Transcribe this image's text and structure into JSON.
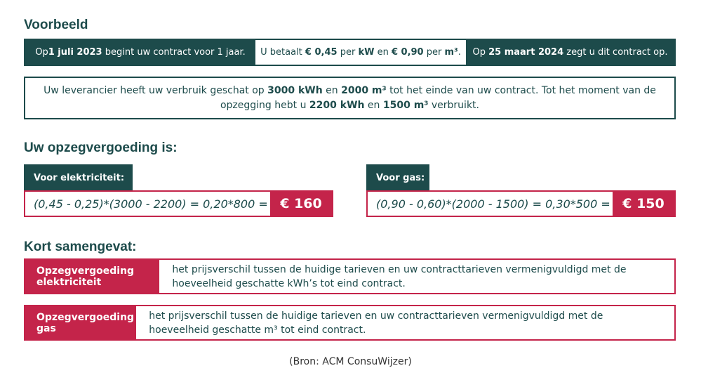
{
  "title": "Voorbeeld",
  "bar": {
    "s1": {
      "a": "Op ",
      "b": "1 juli 2023",
      "c": " begint uw contract voor 1 jaar."
    },
    "s2": {
      "a": "U betaalt ",
      "b": "€ 0,45",
      "c": " per ",
      "d": "kW",
      "e": " en ",
      "f": "€ 0,90",
      "g": " per ",
      "h": "m³",
      "i": "."
    },
    "s3": {
      "a": "Op ",
      "b": "25 maart 2024",
      "c": " zegt u dit contract op."
    }
  },
  "estimate": {
    "a": "Uw leverancier heeft uw verbruik geschat op ",
    "b": "3000 kWh",
    "c": " en ",
    "d": "2000 m³",
    "e": " tot het einde van uw contract. Tot het moment van de opzegging hebt u ",
    "f": "2200 kWh",
    "g": " en ",
    "h": "1500 m³",
    "i": " verbruikt."
  },
  "fee_heading": "Uw opzegvergoeding is:",
  "electricity": {
    "label": "Voor elektriciteit:",
    "formula": "(0,45 - 0,25)*(3000 - 2200) = 0,20*800 =",
    "result": "€ 160"
  },
  "gas": {
    "label": "Voor gas:",
    "formula": "(0,90 - 0,60)*(2000 - 1500) = 0,30*500 =",
    "result": "€ 150"
  },
  "summary_heading": "Kort samengevat:",
  "summary": [
    {
      "label": "Opzegvergoeding elektriciteit",
      "text": "het prijsverschil tussen de huidige tarieven en uw contracttarieven vermenigvuldigd met de hoeveelheid geschatte kWh’s tot eind contract."
    },
    {
      "label": "Opzegvergoeding gas",
      "text": "het prijsverschil tussen de huidige tarieven en uw contracttarieven vermenigvuldigd met de hoeveelheid geschatte m³ tot eind contract."
    }
  ],
  "source": "(Bron: ACM ConsuWijzer)",
  "colors": {
    "green": "#1d4b4b",
    "red": "#c4244a"
  }
}
